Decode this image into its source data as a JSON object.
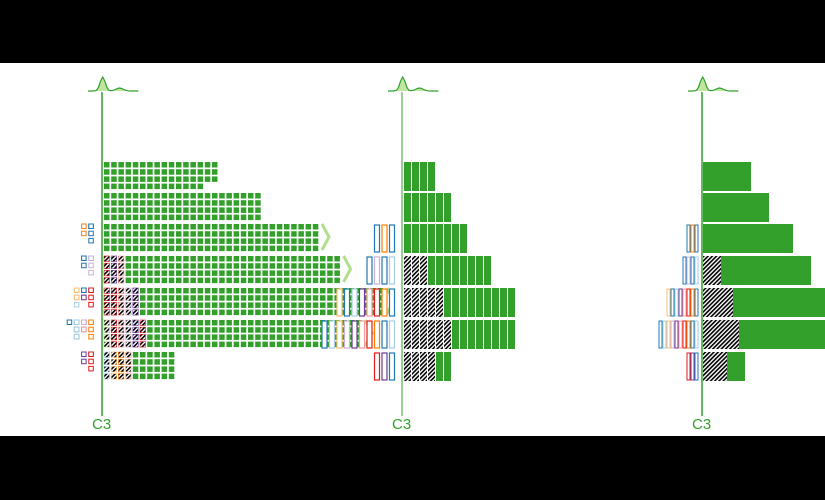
{
  "panels": [
    {
      "id": "glyph",
      "axis_label": "C3"
    },
    {
      "id": "bar",
      "axis_label": "C3"
    },
    {
      "id": "smooth",
      "axis_label": "C3"
    }
  ],
  "colors": {
    "green": "#33a02c",
    "light_green": "#b2df8a",
    "blue": "#1f78b4",
    "light_blue": "#a6cee3",
    "orange": "#ff7f00",
    "light_orange": "#fdbf6f",
    "red": "#e31a1c",
    "pink": "#fb9a99",
    "purple": "#6a3d9a",
    "lavender": "#cab2d6"
  },
  "rows": [
    {
      "green": 16,
      "left": [],
      "hatched": [],
      "chevron": false
    },
    {
      "green": 22,
      "left": [],
      "hatched": [],
      "chevron": false
    },
    {
      "green": 30,
      "left": [
        "#1f78b4",
        "#ff7f00",
        "#1f78b4"
      ],
      "hatched": [],
      "chevron": true
    },
    {
      "green": 30,
      "left": [
        "#a6cee3",
        "#1f78b4",
        "#cab2d6",
        "#1f78b4"
      ],
      "hatched": [
        "#e31a1c",
        "#6a3d9a",
        "#fb9a99"
      ],
      "chevron": true
    },
    {
      "green": 34,
      "left": [
        "#1f78b4",
        "#ff7f00",
        "#e31a1c",
        "#fb9a99",
        "#6a3d9a",
        "#a6cee3",
        "#1f78b4",
        "#fdbf6f"
      ],
      "hatched": [
        "#e31a1c",
        "#e31a1c",
        "#fb9a99",
        "#cab2d6",
        "#6a3d9a"
      ],
      "chevron": true
    },
    {
      "green": 30,
      "left": [
        "#a6cee3",
        "#1f78b4",
        "#ff7f00",
        "#e31a1c",
        "#fb9a99",
        "#6a3d9a",
        "#cab2d6",
        "#fdbf6f",
        "#a6cee3",
        "#1f78b4"
      ],
      "hatched": [
        "#b2df8a",
        "#e31a1c",
        "#fb9a99",
        "#cab2d6",
        "#6a3d9a",
        "#e31a1c"
      ],
      "chevron": true
    },
    {
      "green": 6,
      "left": [
        "#1f78b4",
        "#6a3d9a",
        "#e31a1c"
      ],
      "hatched": [
        "#a6cee3",
        "#fdbf6f",
        "#ff7f00",
        "#fb9a99"
      ],
      "chevron": false
    }
  ]
}
